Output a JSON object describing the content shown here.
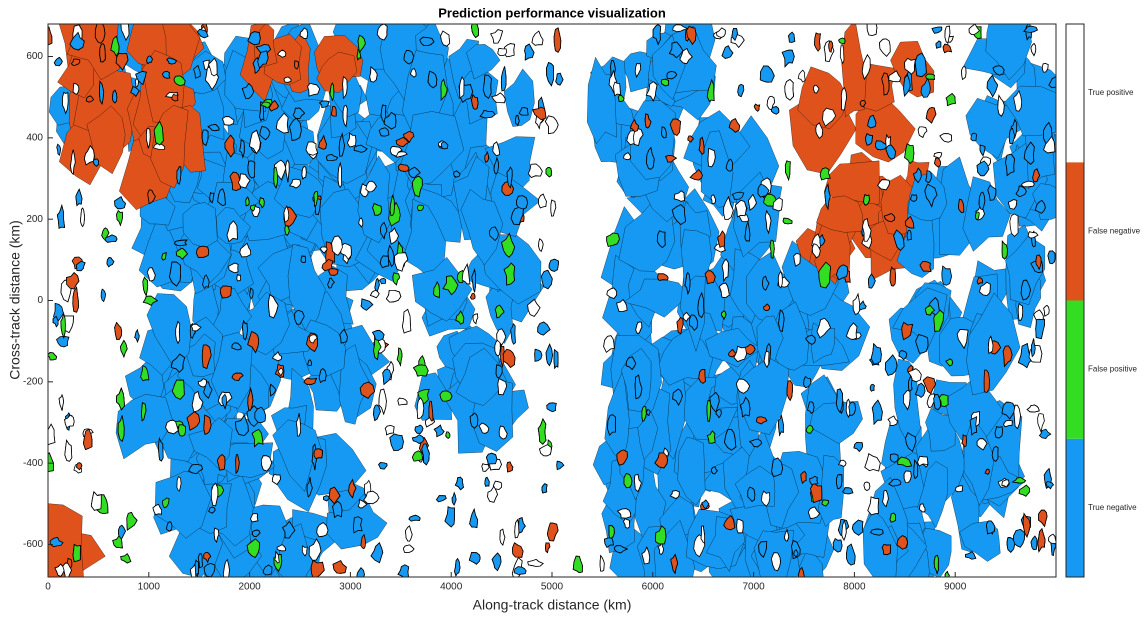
{
  "chart_data": {
    "type": "classmap",
    "title": "Prediction performance visualization",
    "xlabel": "Along-track distance (km)",
    "ylabel": "Cross-track distance (km)",
    "xlim": [
      0,
      10000
    ],
    "ylim": [
      -680,
      680
    ],
    "xticks": [
      0,
      1000,
      2000,
      3000,
      4000,
      5000,
      6000,
      7000,
      8000,
      9000
    ],
    "yticks": [
      -600,
      -400,
      -200,
      0,
      200,
      400,
      600
    ],
    "categories": [
      "True negative",
      "False positive",
      "False negative",
      "True positive"
    ],
    "colors": [
      "#1599f2",
      "#33dd22",
      "#e0521b",
      "#ffffff"
    ]
  }
}
